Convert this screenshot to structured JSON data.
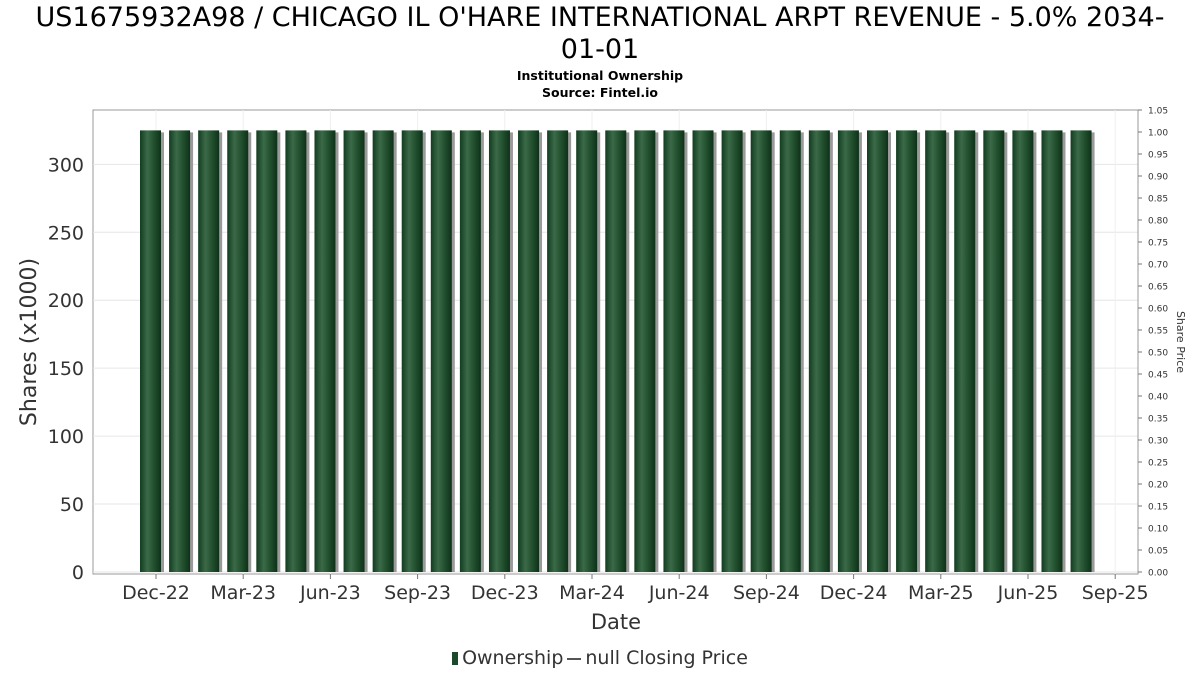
{
  "chart_data": {
    "type": "bar",
    "title_line1": "US1675932A98 / CHICAGO IL O'HARE INTERNATIONAL ARPT REVENUE - 5.0% 2034-",
    "title_line2": "01-01",
    "subtitle": "Institutional Ownership",
    "source": "Source: Fintel.io",
    "xlabel": "Date",
    "ylabel": "Shares (x1000)",
    "y2label": "Share Price",
    "ylim": [
      0,
      340
    ],
    "y2lim": [
      0,
      1.05
    ],
    "yticks": [
      "0",
      "50",
      "100",
      "150",
      "200",
      "250",
      "300"
    ],
    "y2ticks": [
      "0.00",
      "0.05",
      "0.10",
      "0.15",
      "0.20",
      "0.25",
      "0.30",
      "0.35",
      "0.40",
      "0.45",
      "0.50",
      "0.55",
      "0.60",
      "0.65",
      "0.70",
      "0.75",
      "0.80",
      "0.85",
      "0.90",
      "0.95",
      "1.00",
      "1.05"
    ],
    "xticks": [
      "Dec-22",
      "Mar-23",
      "Jun-23",
      "Sep-23",
      "Dec-23",
      "Mar-24",
      "Jun-24",
      "Sep-24",
      "Dec-24",
      "Mar-25",
      "Jun-25",
      "Sep-25"
    ],
    "grid": true,
    "legend_position": "bottom",
    "series": [
      {
        "name": "Ownership",
        "color": "#1a4a2a",
        "values": [
          325,
          325,
          325,
          325,
          325,
          325,
          325,
          325,
          325,
          325,
          325,
          325,
          325,
          325,
          325,
          325,
          325,
          325,
          325,
          325,
          325,
          325,
          325,
          325,
          325,
          325,
          325,
          325,
          325,
          325,
          325,
          325,
          325
        ]
      }
    ],
    "legend": {
      "ownership_label": "Ownership",
      "price_label": "null Closing Price"
    }
  }
}
